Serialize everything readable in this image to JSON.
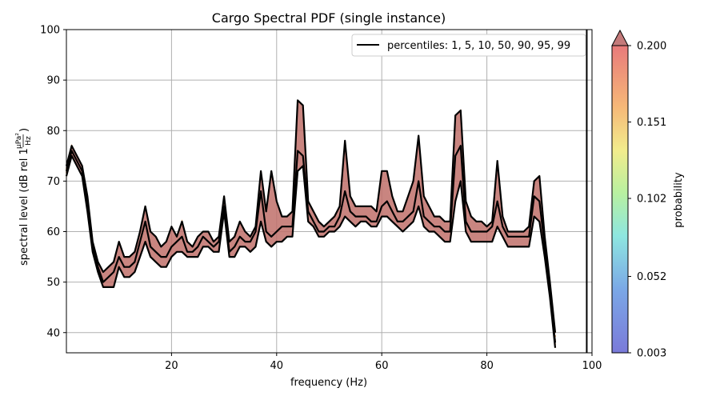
{
  "chart_data": {
    "type": "line",
    "title": "Cargo Spectral PDF (single instance)",
    "xlabel": "frequency (Hz)",
    "ylabel": "spectral level (dB rel 1 µPa²/Hz)",
    "ylabel_main": "spectral level (dB rel 1",
    "ylabel_frac_num": "µPa²",
    "ylabel_frac_den": "Hz",
    "ylabel_close": ")",
    "xlim": [
      0,
      100
    ],
    "ylim": [
      36,
      100
    ],
    "x_ticks": [
      20,
      40,
      60,
      80,
      100
    ],
    "y_ticks": [
      40,
      50,
      60,
      70,
      80,
      90,
      100
    ],
    "grid": true,
    "legend": {
      "position": "top-right",
      "label": "percentiles: 1, 5, 10, 50, 90, 95, 99"
    },
    "vertical_line_x": 99,
    "colorbar": {
      "label": "probability",
      "min": 0.003,
      "max": 0.2,
      "ticks": [
        "0.003",
        "0.052",
        "0.102",
        "0.151",
        "0.200"
      ],
      "extend": "max"
    },
    "series": [
      {
        "name": "p1",
        "x": [
          0,
          1,
          3,
          4,
          5,
          6,
          7,
          8,
          9,
          10,
          11,
          12,
          13,
          14,
          15,
          16,
          17,
          18,
          19,
          20,
          21,
          22,
          23,
          24,
          25,
          26,
          27,
          28,
          29,
          30,
          31,
          32,
          33,
          34,
          35,
          36,
          37,
          38,
          39,
          40,
          41,
          42,
          43,
          44,
          45,
          46,
          47,
          48,
          49,
          50,
          51,
          52,
          53,
          54,
          55,
          56,
          57,
          58,
          59,
          60,
          61,
          62,
          63,
          64,
          65,
          66,
          67,
          68,
          69,
          70,
          71,
          72,
          73,
          74,
          75,
          76,
          77,
          78,
          79,
          80,
          81,
          82,
          83,
          84,
          85,
          86,
          87,
          88,
          89,
          90,
          91,
          92,
          93
        ],
        "y": [
          71,
          75,
          71,
          64,
          56,
          52,
          49,
          49,
          49,
          53,
          51,
          51,
          52,
          55,
          58,
          55,
          54,
          53,
          53,
          55,
          56,
          56,
          55,
          55,
          55,
          57,
          57,
          56,
          56,
          64,
          55,
          55,
          57,
          57,
          56,
          57,
          62,
          58,
          57,
          58,
          58,
          59,
          59,
          72,
          73,
          62,
          61,
          59,
          59,
          60,
          60,
          61,
          63,
          62,
          61,
          62,
          62,
          61,
          61,
          63,
          63,
          62,
          61,
          60,
          61,
          62,
          65,
          61,
          60,
          60,
          59,
          58,
          58,
          66,
          70,
          60,
          58,
          58,
          58,
          58,
          58,
          61,
          59,
          57,
          57,
          57,
          57,
          57,
          63,
          62,
          55,
          47,
          37
        ]
      },
      {
        "name": "p50",
        "x": [
          0,
          1,
          3,
          4,
          5,
          6,
          7,
          8,
          9,
          10,
          11,
          12,
          13,
          14,
          15,
          16,
          17,
          18,
          19,
          20,
          21,
          22,
          23,
          24,
          25,
          26,
          27,
          28,
          29,
          30,
          31,
          32,
          33,
          34,
          35,
          36,
          37,
          38,
          39,
          40,
          41,
          42,
          43,
          44,
          45,
          46,
          47,
          48,
          49,
          50,
          51,
          52,
          53,
          54,
          55,
          56,
          57,
          58,
          59,
          60,
          61,
          62,
          63,
          64,
          65,
          66,
          67,
          68,
          69,
          70,
          71,
          72,
          73,
          74,
          75,
          76,
          77,
          78,
          79,
          80,
          81,
          82,
          83,
          84,
          85,
          86,
          87,
          88,
          89,
          90,
          91,
          92,
          93
        ],
        "y": [
          72,
          76,
          72,
          66,
          57,
          53,
          50,
          51,
          52,
          55,
          53,
          53,
          54,
          58,
          62,
          57,
          56,
          55,
          55,
          57,
          58,
          59,
          56,
          56,
          57,
          59,
          58,
          57,
          58,
          65,
          56,
          57,
          59,
          58,
          58,
          60,
          68,
          60,
          59,
          60,
          61,
          61,
          61,
          76,
          75,
          64,
          62,
          60,
          60,
          61,
          61,
          63,
          68,
          64,
          63,
          63,
          63,
          62,
          62,
          65,
          66,
          64,
          62,
          62,
          63,
          64,
          70,
          63,
          62,
          61,
          61,
          60,
          60,
          75,
          77,
          62,
          60,
          60,
          60,
          60,
          61,
          66,
          61,
          59,
          59,
          59,
          59,
          59,
          67,
          66,
          57,
          48,
          38
        ]
      },
      {
        "name": "p99",
        "x": [
          0,
          1,
          3,
          4,
          5,
          6,
          7,
          8,
          9,
          10,
          11,
          12,
          13,
          14,
          15,
          16,
          17,
          18,
          19,
          20,
          21,
          22,
          23,
          24,
          25,
          26,
          27,
          28,
          29,
          30,
          31,
          32,
          33,
          34,
          35,
          36,
          37,
          38,
          39,
          40,
          41,
          42,
          43,
          44,
          45,
          46,
          47,
          48,
          49,
          50,
          51,
          52,
          53,
          54,
          55,
          56,
          57,
          58,
          59,
          60,
          61,
          62,
          63,
          64,
          65,
          66,
          67,
          68,
          69,
          70,
          71,
          72,
          73,
          74,
          75,
          76,
          77,
          78,
          79,
          80,
          81,
          82,
          83,
          84,
          85,
          86,
          87,
          88,
          89,
          90,
          91,
          92,
          93
        ],
        "y": [
          73,
          77,
          73,
          67,
          58,
          54,
          52,
          53,
          54,
          58,
          55,
          55,
          56,
          60,
          65,
          60,
          59,
          57,
          58,
          61,
          59,
          62,
          58,
          57,
          59,
          60,
          60,
          58,
          59,
          67,
          58,
          59,
          62,
          60,
          59,
          61,
          72,
          64,
          72,
          66,
          63,
          63,
          64,
          86,
          85,
          66,
          64,
          62,
          61,
          62,
          63,
          65,
          78,
          67,
          65,
          65,
          65,
          65,
          64,
          72,
          72,
          67,
          64,
          64,
          67,
          70,
          79,
          67,
          65,
          63,
          63,
          62,
          62,
          83,
          84,
          66,
          63,
          62,
          62,
          61,
          62,
          74,
          63,
          60,
          60,
          60,
          60,
          61,
          70,
          71,
          59,
          50,
          40
        ]
      }
    ]
  }
}
